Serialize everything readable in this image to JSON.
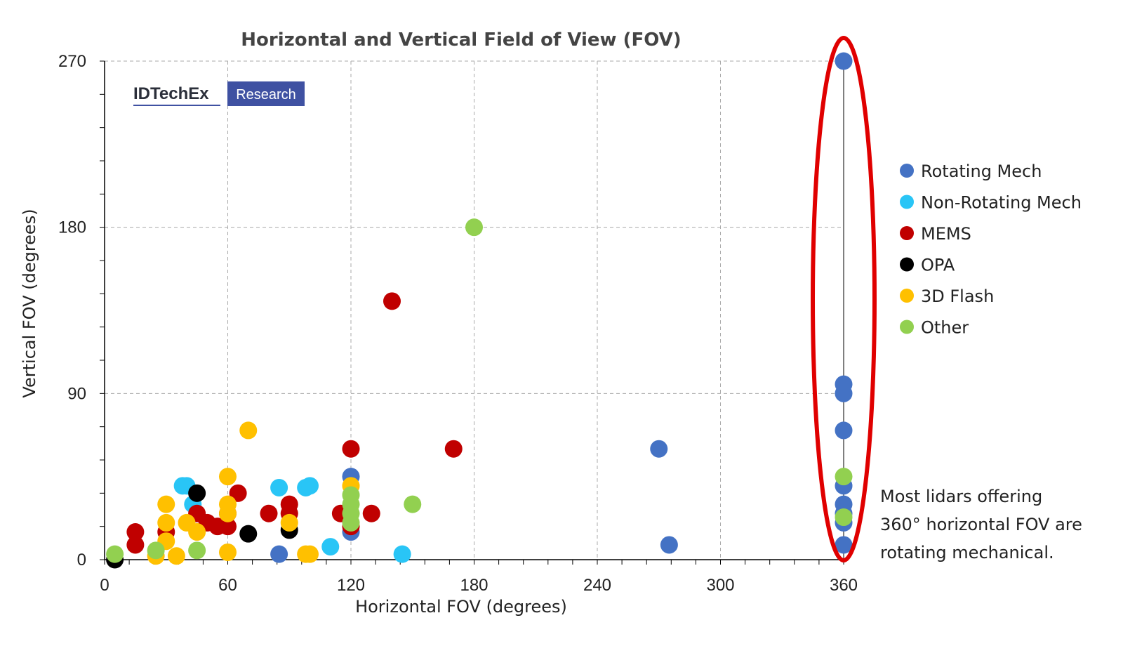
{
  "chart_data": {
    "type": "scatter",
    "title": "Horizontal and Vertical Field of View (FOV)",
    "xlabel": "Horizontal FOV (degrees)",
    "ylabel": "Vertical FOV (degrees)",
    "xlim": [
      0,
      360
    ],
    "ylim": [
      0,
      270
    ],
    "xticks": [
      0,
      60,
      120,
      180,
      240,
      300,
      360
    ],
    "yticks": [
      0,
      90,
      180,
      270
    ],
    "grid": "dashed gridlines at major ticks",
    "legend_position": "right",
    "series": [
      {
        "name": "Rotating Mech",
        "color": "#4472C4",
        "points": [
          [
            360,
            270
          ],
          [
            360,
            95
          ],
          [
            360,
            90
          ],
          [
            360,
            70
          ],
          [
            360,
            40
          ],
          [
            360,
            30
          ],
          [
            360,
            25
          ],
          [
            360,
            20
          ],
          [
            360,
            8
          ],
          [
            270,
            60
          ],
          [
            275,
            8
          ],
          [
            120,
            45
          ],
          [
            120,
            15
          ],
          [
            85,
            3
          ]
        ]
      },
      {
        "name": "Non-Rotating Mech",
        "color": "#29C5F6",
        "points": [
          [
            38,
            40
          ],
          [
            40,
            40
          ],
          [
            43,
            30
          ],
          [
            85,
            39
          ],
          [
            98,
            39
          ],
          [
            100,
            40
          ],
          [
            110,
            7
          ],
          [
            145,
            3
          ]
        ]
      },
      {
        "name": "MEMS",
        "color": "#C00000",
        "points": [
          [
            140,
            140
          ],
          [
            170,
            60
          ],
          [
            120,
            60
          ],
          [
            130,
            25
          ],
          [
            115,
            25
          ],
          [
            120,
            18
          ],
          [
            90,
            30
          ],
          [
            90,
            25
          ],
          [
            80,
            25
          ],
          [
            65,
            36
          ],
          [
            60,
            25
          ],
          [
            60,
            18
          ],
          [
            55,
            18
          ],
          [
            50,
            20
          ],
          [
            45,
            25
          ],
          [
            30,
            15
          ],
          [
            15,
            15
          ],
          [
            15,
            8
          ]
        ]
      },
      {
        "name": "OPA",
        "color": "#000000",
        "points": [
          [
            45,
            36
          ],
          [
            70,
            14
          ],
          [
            90,
            16
          ],
          [
            5,
            0
          ]
        ]
      },
      {
        "name": "3D Flash",
        "color": "#FFC000",
        "points": [
          [
            70,
            70
          ],
          [
            60,
            45
          ],
          [
            60,
            30
          ],
          [
            60,
            25
          ],
          [
            60,
            4
          ],
          [
            30,
            30
          ],
          [
            30,
            20
          ],
          [
            30,
            10
          ],
          [
            40,
            20
          ],
          [
            45,
            15
          ],
          [
            35,
            2
          ],
          [
            25,
            2
          ],
          [
            90,
            20
          ],
          [
            98,
            3
          ],
          [
            100,
            3
          ],
          [
            120,
            40
          ]
        ]
      },
      {
        "name": "Other",
        "color": "#92D050",
        "points": [
          [
            180,
            180
          ],
          [
            150,
            30
          ],
          [
            120,
            35
          ],
          [
            120,
            30
          ],
          [
            120,
            25
          ],
          [
            120,
            20
          ],
          [
            45,
            5
          ],
          [
            25,
            5
          ],
          [
            5,
            3
          ],
          [
            360,
            45
          ],
          [
            360,
            23
          ]
        ]
      }
    ],
    "annotation": {
      "lines": [
        "Most lidars offering",
        "360° horizontal FOV are",
        "rotating mechanical."
      ],
      "highlight_color": "#E00000"
    }
  },
  "logo": {
    "main": "IDTechEx",
    "sub": "Research",
    "sub_bg": "#3F51A2"
  }
}
